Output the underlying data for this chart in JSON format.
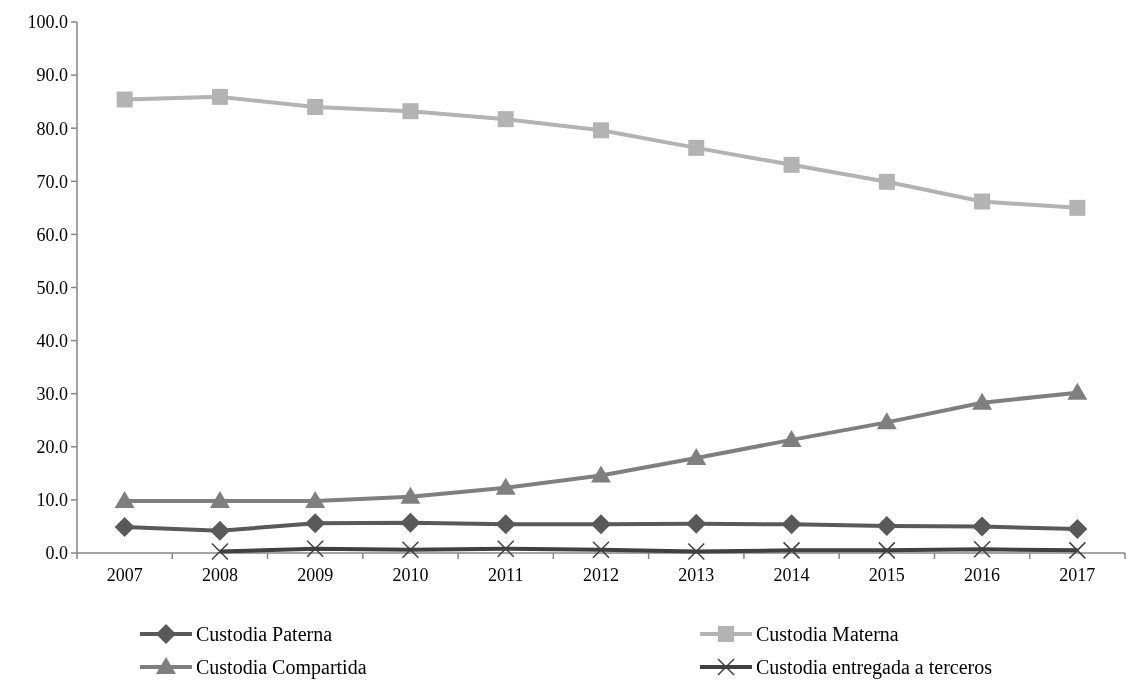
{
  "chart_data": {
    "type": "line",
    "categories": [
      "2007",
      "2008",
      "2009",
      "2010",
      "2011",
      "2012",
      "2013",
      "2014",
      "2015",
      "2016",
      "2017"
    ],
    "series": [
      {
        "name": "Custodia Paterna",
        "color": "#595959",
        "marker": "diamond",
        "values": [
          4.9,
          4.2,
          5.6,
          5.7,
          5.4,
          5.4,
          5.5,
          5.4,
          5.1,
          5.0,
          4.5
        ]
      },
      {
        "name": "Custodia Materna",
        "color": "#b3b3b3",
        "marker": "square",
        "values": [
          85.4,
          85.9,
          84.0,
          83.2,
          81.7,
          79.6,
          76.3,
          73.1,
          69.9,
          66.2,
          65.0
        ]
      },
      {
        "name": "Custodia Compartida",
        "color": "#7f7f7f",
        "marker": "triangle",
        "values": [
          9.8,
          9.8,
          9.8,
          10.6,
          12.3,
          14.6,
          17.9,
          21.3,
          24.6,
          28.3,
          30.2
        ]
      },
      {
        "name": "Custodia entregada a terceros",
        "color": "#404040",
        "marker": "cross",
        "values": [
          null,
          0.3,
          0.8,
          0.6,
          0.8,
          0.6,
          0.3,
          0.5,
          0.5,
          0.7,
          0.5
        ]
      }
    ],
    "ylim": [
      0,
      100
    ],
    "yticks": [
      {
        "value": 0,
        "label": "0.0"
      },
      {
        "value": 10,
        "label": "10.0"
      },
      {
        "value": 20,
        "label": "20.0"
      },
      {
        "value": 30,
        "label": "30.0"
      },
      {
        "value": 40,
        "label": "40.0"
      },
      {
        "value": 50,
        "label": "50.0"
      },
      {
        "value": 60,
        "label": "60.0"
      },
      {
        "value": 70,
        "label": "70.0"
      },
      {
        "value": 80,
        "label": "80.0"
      },
      {
        "value": 90,
        "label": "90.0"
      },
      {
        "value": 100,
        "label": "100.0"
      }
    ],
    "grid": false,
    "legend": "bottom"
  }
}
